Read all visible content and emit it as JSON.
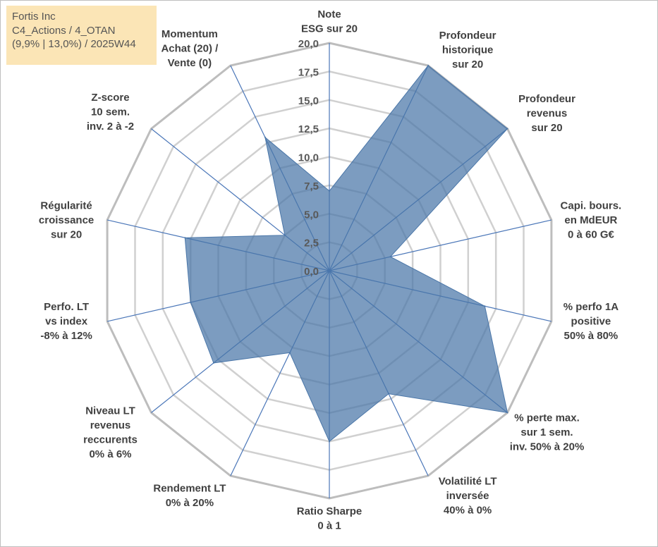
{
  "info_box": {
    "company": "Fortis Inc",
    "category": "C4_Actions / 4_OTAN",
    "details": "(9,9% | 13,0%) / 2025W44"
  },
  "chart_data": {
    "type": "radar",
    "title": "",
    "rmin": 0,
    "rmax": 20,
    "tick_step": 2.5,
    "tick_labels": [
      "0,0",
      "2,5",
      "5,0",
      "7,5",
      "10,0",
      "12,5",
      "15,0",
      "17,5",
      "20,0"
    ],
    "grid": true,
    "axes": [
      [
        "Note",
        "ESG sur 20"
      ],
      [
        "Profondeur",
        "historique",
        "sur 20"
      ],
      [
        "Profondeur",
        "revenus",
        "sur 20"
      ],
      [
        "Capi. bours.",
        "en MdEUR",
        "0 à 60 G€"
      ],
      [
        "% perfo 1A",
        "positive",
        "50% à 80%"
      ],
      [
        "% perte max.",
        "sur 1 sem.",
        "inv. 50% à 20%"
      ],
      [
        "Volatilité LT",
        "inversée",
        "40% à 0%"
      ],
      [
        "Ratio Sharpe",
        "0 à 1"
      ],
      [
        "Rendement LT",
        "0% à 20%"
      ],
      [
        "Niveau LT",
        "revenus",
        "reccurents",
        "0% à 6%"
      ],
      [
        "Perfo. LT",
        "vs index",
        "-8% à 12%"
      ],
      [
        "Régularité",
        "croissance",
        "sur 20"
      ],
      [
        "Z-score",
        "10 sem.",
        "inv. 2 à -2"
      ],
      [
        "Momentum",
        "Achat (20) /",
        "Vente (0)"
      ]
    ],
    "series": [
      {
        "name": "Fortis Inc",
        "color": "#4a76a8",
        "values": [
          7,
          20,
          20,
          5.5,
          14,
          20,
          12,
          15,
          8,
          13,
          12.5,
          13,
          5,
          13
        ]
      }
    ]
  }
}
